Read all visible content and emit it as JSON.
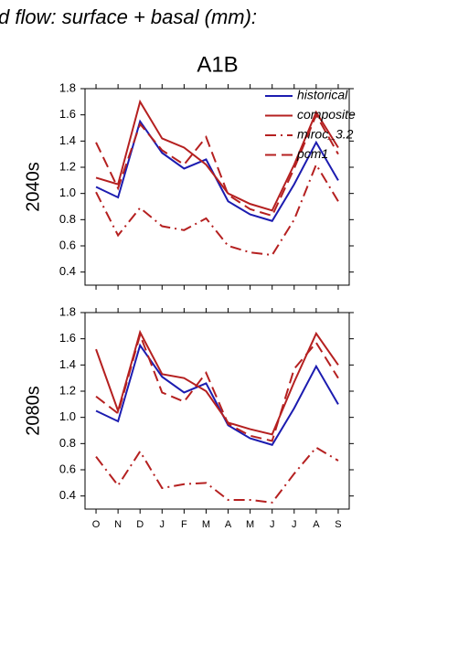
{
  "chart_data": [
    {
      "type": "line",
      "title": "d flow: surface + basal (mm):",
      "subtitle": "A1B",
      "ylabel": "2040s",
      "ylim": [
        0.3,
        1.8
      ],
      "yticks": [
        0.4,
        0.6,
        0.8,
        {
          "value": 1,
          "label": "1.0"
        },
        1.2,
        1.4,
        1.6,
        1.8
      ],
      "legend": "upper right",
      "series": [
        {
          "name": "historical",
          "color": "#1c1cb0",
          "linestyle": "solid",
          "values": [
            1.05,
            0.97,
            1.55,
            1.31,
            1.19,
            1.26,
            0.94,
            0.84,
            0.79,
            1.07,
            1.39,
            1.1
          ]
        },
        {
          "name": "composite",
          "color": "#b52020",
          "linestyle": "solid",
          "values": [
            1.12,
            1.07,
            1.7,
            1.42,
            1.35,
            1.22,
            1.0,
            0.92,
            0.87,
            1.22,
            1.62,
            1.35
          ]
        },
        {
          "name": "miroc_3.2",
          "color": "#b52020",
          "linestyle": "dashdot",
          "values": [
            1.01,
            0.68,
            0.89,
            0.75,
            0.72,
            0.81,
            0.6,
            0.55,
            0.53,
            0.8,
            1.22,
            0.94
          ]
        },
        {
          "name": "pcm1",
          "color": "#b52020",
          "linestyle": "dashed",
          "values": [
            1.39,
            1.04,
            1.53,
            1.33,
            1.22,
            1.43,
            0.99,
            0.88,
            0.83,
            1.19,
            1.6,
            1.3
          ]
        }
      ]
    },
    {
      "type": "line",
      "ylabel": "2080s",
      "categories": [
        "O",
        "N",
        "D",
        "J",
        "F",
        "M",
        "A",
        "M",
        "J",
        "J",
        "A",
        "S"
      ],
      "ylim": [
        0.3,
        1.8
      ],
      "yticks": [
        0.4,
        0.6,
        0.8,
        {
          "value": 1,
          "label": "1.0"
        },
        1.2,
        1.4,
        1.6,
        1.8
      ],
      "series": [
        {
          "color": "#1c1cb0",
          "linestyle": "solid",
          "values": [
            1.05,
            0.97,
            1.55,
            1.31,
            1.19,
            1.26,
            0.94,
            0.84,
            0.79,
            1.07,
            1.39,
            1.1
          ]
        },
        {
          "color": "#b52020",
          "linestyle": "solid",
          "values": [
            1.52,
            1.05,
            1.65,
            1.33,
            1.3,
            1.2,
            0.96,
            0.91,
            0.87,
            1.27,
            1.64,
            1.4
          ]
        },
        {
          "color": "#b52020",
          "linestyle": "dashdot",
          "values": [
            0.7,
            0.48,
            0.74,
            0.46,
            0.49,
            0.5,
            0.37,
            0.37,
            0.35,
            0.57,
            0.77,
            0.67
          ]
        },
        {
          "color": "#b52020",
          "linestyle": "dashed",
          "values": [
            1.16,
            1.03,
            1.63,
            1.19,
            1.12,
            1.34,
            0.95,
            0.86,
            0.82,
            1.37,
            1.57,
            1.3
          ]
        }
      ]
    }
  ]
}
